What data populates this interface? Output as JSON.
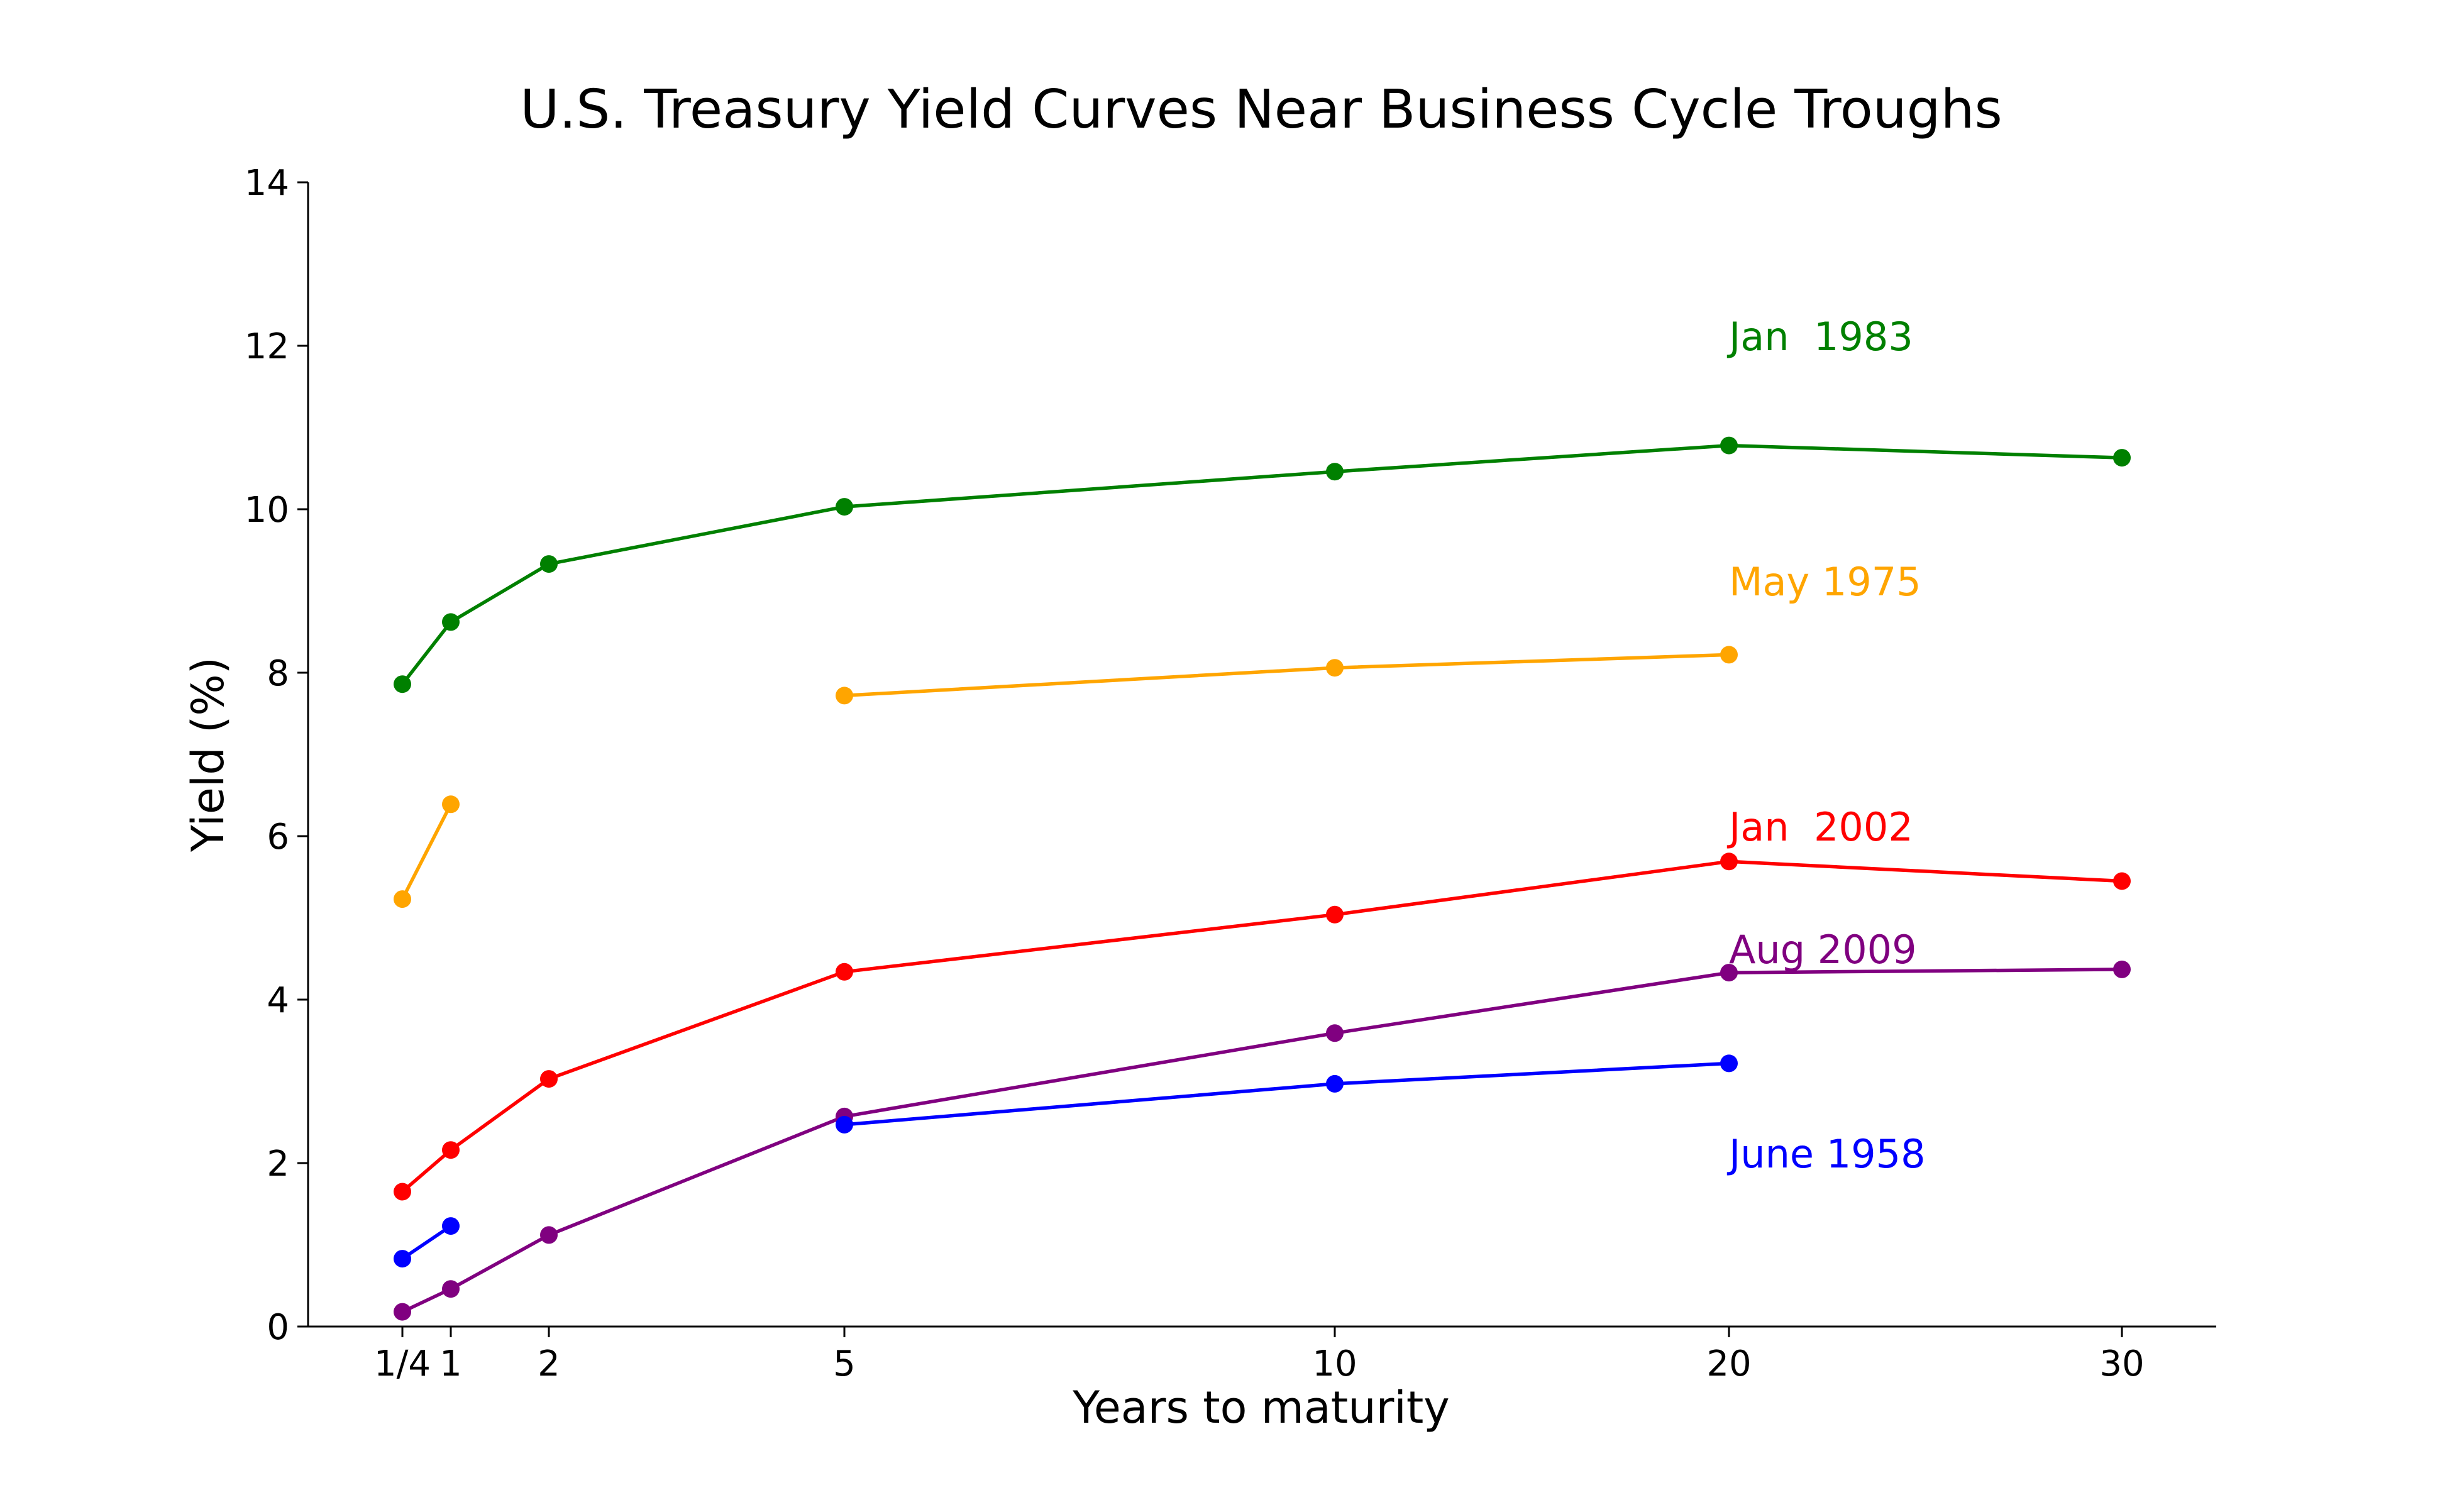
{
  "chart_data": {
    "type": "line",
    "title": "U.S. Treasury Yield Curves Near Business Cycle Troughs",
    "xlabel": "Years to maturity",
    "ylabel": "Yield (%)",
    "ylim": [
      0,
      14
    ],
    "yticks": [
      0,
      2,
      4,
      6,
      8,
      10,
      12,
      14
    ],
    "xticks": [
      "1/4",
      "1",
      "2",
      "5",
      "10",
      "20",
      "30"
    ],
    "grid": false,
    "series": [
      {
        "name": "Jan  1983",
        "color": "#008000",
        "points": [
          [
            "1/4",
            7.86
          ],
          [
            "1",
            8.62
          ],
          [
            "2",
            9.33
          ],
          [
            "5",
            10.03
          ],
          [
            "10",
            10.46
          ],
          [
            "20",
            10.78
          ],
          [
            "30",
            10.63
          ]
        ]
      },
      {
        "name": "May 1975",
        "color": "#FFA500",
        "points": [
          [
            "1/4",
            5.23
          ],
          [
            "1",
            6.39
          ],
          [
            "5",
            7.72
          ],
          [
            "10",
            8.06
          ],
          [
            "20",
            8.22
          ]
        ]
      },
      {
        "name": "Jan  2002",
        "color": "#FF0000",
        "points": [
          [
            "1/4",
            1.65
          ],
          [
            "1",
            2.16
          ],
          [
            "2",
            3.03
          ],
          [
            "5",
            4.34
          ],
          [
            "10",
            5.04
          ],
          [
            "20",
            5.69
          ],
          [
            "30",
            5.45
          ]
        ]
      },
      {
        "name": "Aug 2009",
        "color": "#800080",
        "points": [
          [
            "1/4",
            0.18
          ],
          [
            "1",
            0.46
          ],
          [
            "2",
            1.12
          ],
          [
            "5",
            2.57
          ],
          [
            "10",
            3.59
          ],
          [
            "20",
            4.33
          ],
          [
            "30",
            4.37
          ]
        ]
      },
      {
        "name": "June 1958",
        "color": "#0000FF",
        "points": [
          [
            "1/4",
            0.83
          ],
          [
            "1",
            1.23
          ],
          [
            "5",
            2.47
          ],
          [
            "10",
            2.97
          ],
          [
            "20",
            3.22
          ]
        ]
      }
    ],
    "annotations": [
      {
        "text": "Jan  1983",
        "series": "Jan  1983",
        "at": [
          "20",
          12.1
        ]
      },
      {
        "text": "May 1975",
        "series": "May 1975",
        "at": [
          "20",
          9.1
        ]
      },
      {
        "text": "Jan  2002",
        "series": "Jan  2002",
        "at": [
          "20",
          6.1
        ]
      },
      {
        "text": "Aug 2009",
        "series": "Aug 2009",
        "at": [
          "20",
          4.6
        ]
      },
      {
        "text": "June 1958",
        "series": "June 1958",
        "at": [
          "20",
          2.1
        ]
      }
    ]
  }
}
